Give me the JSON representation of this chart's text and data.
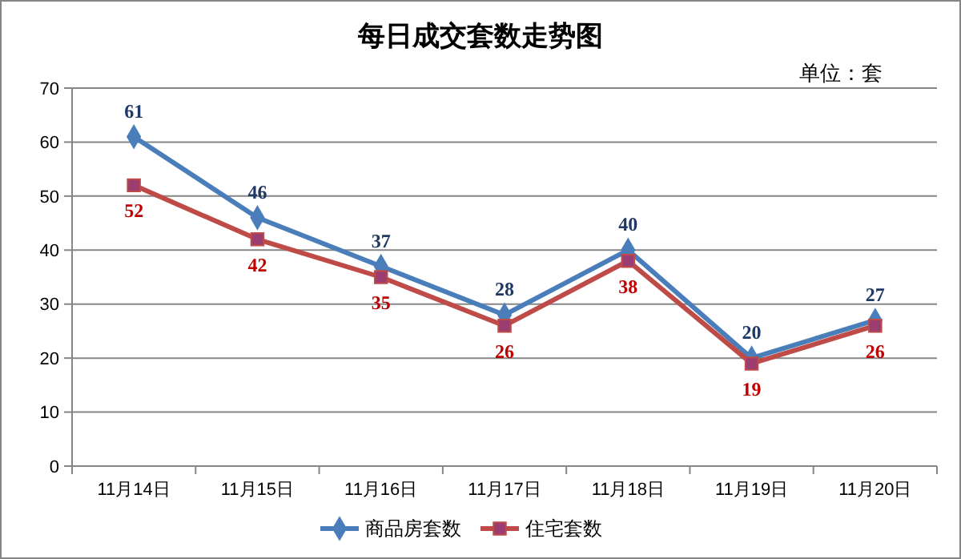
{
  "chart_data": {
    "type": "line",
    "title": "每日成交套数走势图",
    "annotations": [
      "单位：套"
    ],
    "categories": [
      "11月14日",
      "11月15日",
      "11月16日",
      "11月17日",
      "11月18日",
      "11月19日",
      "11月20日"
    ],
    "series": [
      {
        "name": "商品房套数",
        "color": "#4a7ebb",
        "marker": "diamond",
        "values": [
          61,
          46,
          37,
          28,
          40,
          20,
          27
        ]
      },
      {
        "name": "住宅套数",
        "color": "#be4b48",
        "marker": "square",
        "values": [
          52,
          42,
          35,
          26,
          38,
          19,
          26
        ]
      }
    ],
    "ylim": [
      0,
      70
    ],
    "yticks": [
      0,
      10,
      20,
      30,
      40,
      50,
      60,
      70
    ],
    "grid": "y",
    "legend": "bottom",
    "data_labels": true
  }
}
